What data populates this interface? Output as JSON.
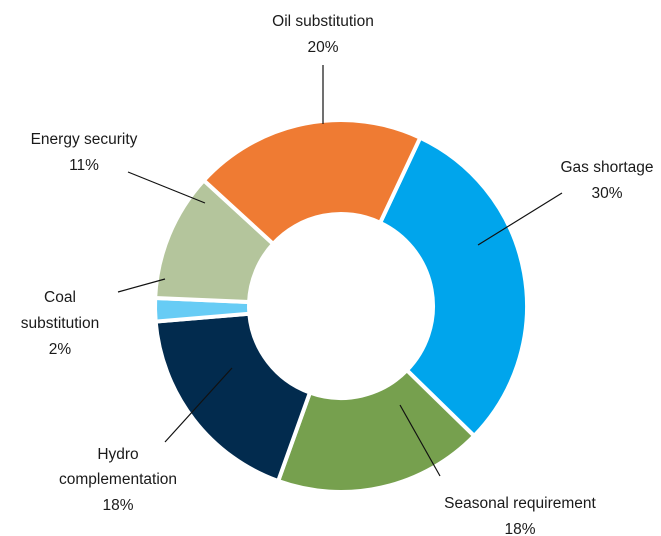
{
  "chart_data": {
    "type": "pie",
    "variant": "donut",
    "title": "",
    "slices": [
      {
        "name": "Gas shortage",
        "value": 30,
        "label": "30%",
        "color": "#00A5EC"
      },
      {
        "name": "Seasonal requirement",
        "value": 18,
        "label": "18%",
        "color": "#76A04E"
      },
      {
        "name": "Hydro complementation",
        "value": 18,
        "label": "18%",
        "color": "#022B4E"
      },
      {
        "name": "Coal substitution",
        "value": 2,
        "label": "2%",
        "color": "#67CCF5"
      },
      {
        "name": "Energy security",
        "value": 11,
        "label": "11%",
        "color": "#B4C59C"
      },
      {
        "name": "Oil substitution",
        "value": 20,
        "label": "20%",
        "color": "#EF7B33"
      }
    ],
    "legend": "none",
    "data_labels": "outside-with-leader-lines"
  }
}
